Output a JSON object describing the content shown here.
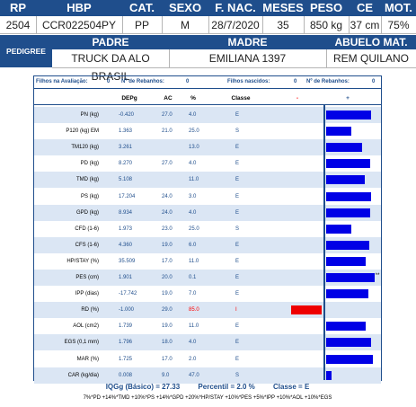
{
  "header": {
    "labels": [
      "RP",
      "HBP",
      "CAT.",
      "SEXO",
      "F. NAC.",
      "MESES",
      "PESO",
      "CE",
      "MOT."
    ],
    "values": [
      "2504",
      "CCR022504PY",
      "PP",
      "M",
      "28/7/2020",
      "35",
      "850 kg",
      "37 cm",
      "75%"
    ]
  },
  "pedigree": {
    "label": "PEDIGREE",
    "col_labels": [
      "PADRE",
      "MADRE",
      "ABUELO MAT."
    ],
    "values": [
      "TRUCK DA ALO BRASIL",
      "EMILIANA 1397",
      "REM QUILANO"
    ]
  },
  "filhos": {
    "aval_label": "Filhos na Avaliação:",
    "aval_value": "0",
    "reb1_label": "Nº de Rebanhos:",
    "reb1_value": "0",
    "nasc_label": "Filhos nascidos:",
    "nasc_value": "0",
    "reb2_label": "Nº de Rebanhos:",
    "reb2_value": "0"
  },
  "columns": {
    "depg": "DEPg",
    "ac": "AC",
    "pct": "%",
    "classe": "Classe",
    "minus": "-",
    "plus": "+"
  },
  "traits": [
    {
      "name": "PN (kg)",
      "depg": "-0.420",
      "ac": "27.0",
      "pct": "4.0",
      "classe": "E",
      "bar": 0.9
    },
    {
      "name": "P120 (kg) EM",
      "depg": "1.363",
      "ac": "21.0",
      "pct": "25.0",
      "classe": "S",
      "bar": 0.5
    },
    {
      "name": "TM120 (kg)",
      "depg": "3.261",
      "ac": "",
      "pct": "13.0",
      "classe": "E",
      "bar": 0.72
    },
    {
      "name": "PD (kg)",
      "depg": "8.270",
      "ac": "27.0",
      "pct": "4.0",
      "classe": "E",
      "bar": 0.88
    },
    {
      "name": "TMD (kg)",
      "depg": "5.108",
      "ac": "",
      "pct": "11.0",
      "classe": "E",
      "bar": 0.76
    },
    {
      "name": "PS (kg)",
      "depg": "17.204",
      "ac": "24.0",
      "pct": "3.0",
      "classe": "E",
      "bar": 0.9
    },
    {
      "name": "GPD (kg)",
      "depg": "8.934",
      "ac": "24.0",
      "pct": "4.0",
      "classe": "E",
      "bar": 0.88
    },
    {
      "name": "CFD (1-6)",
      "depg": "1.973",
      "ac": "23.0",
      "pct": "25.0",
      "classe": "S",
      "bar": 0.5
    },
    {
      "name": "CFS (1-6)",
      "depg": "4.360",
      "ac": "19.0",
      "pct": "6.0",
      "classe": "E",
      "bar": 0.86
    },
    {
      "name": "HP/STAY (%)",
      "depg": "35.509",
      "ac": "17.0",
      "pct": "11.0",
      "classe": "E",
      "bar": 0.78
    },
    {
      "name": "PES (cm)",
      "depg": "1.901",
      "ac": "20.0",
      "pct": "0.1",
      "classe": "E",
      "bar": 0.96,
      "star": "**"
    },
    {
      "name": "IPP (dias)",
      "depg": "-17.742",
      "ac": "19.0",
      "pct": "7.0",
      "classe": "E",
      "bar": 0.84
    },
    {
      "name": "RD (%)",
      "depg": "-1.000",
      "ac": "29.0",
      "pct": "85.0",
      "classe": "I",
      "bar": -0.7
    },
    {
      "name": "AOL (cm2)",
      "depg": "1.739",
      "ac": "19.0",
      "pct": "11.0",
      "classe": "E",
      "bar": 0.78
    },
    {
      "name": "EGS (0,1 mm)",
      "depg": "1.796",
      "ac": "18.0",
      "pct": "4.0",
      "classe": "E",
      "bar": 0.9
    },
    {
      "name": "MAR (%)",
      "depg": "1.725",
      "ac": "17.0",
      "pct": "2.0",
      "classe": "E",
      "bar": 0.92
    },
    {
      "name": "CAR (kg/dia)",
      "depg": "0.008",
      "ac": "9.0",
      "pct": "47.0",
      "classe": "S",
      "bar": 0.1
    }
  ],
  "summary": {
    "iqgg": "IQGg (Básico) = 27.33",
    "percentil": "Percentil = 2.0 %",
    "classe": "Classe = E",
    "formula": "7%*PD +14%*TMD +10%*PS +14%*GPD +20%*HP/STAY +10%*PES +5%*IPP +10%*AOL +10%*EGS"
  },
  "colors": {
    "navy": "#1f4e8c",
    "bar_positive": "#0000e6",
    "bar_negative": "#ee0000",
    "row_alt": "#dbe6f4"
  }
}
